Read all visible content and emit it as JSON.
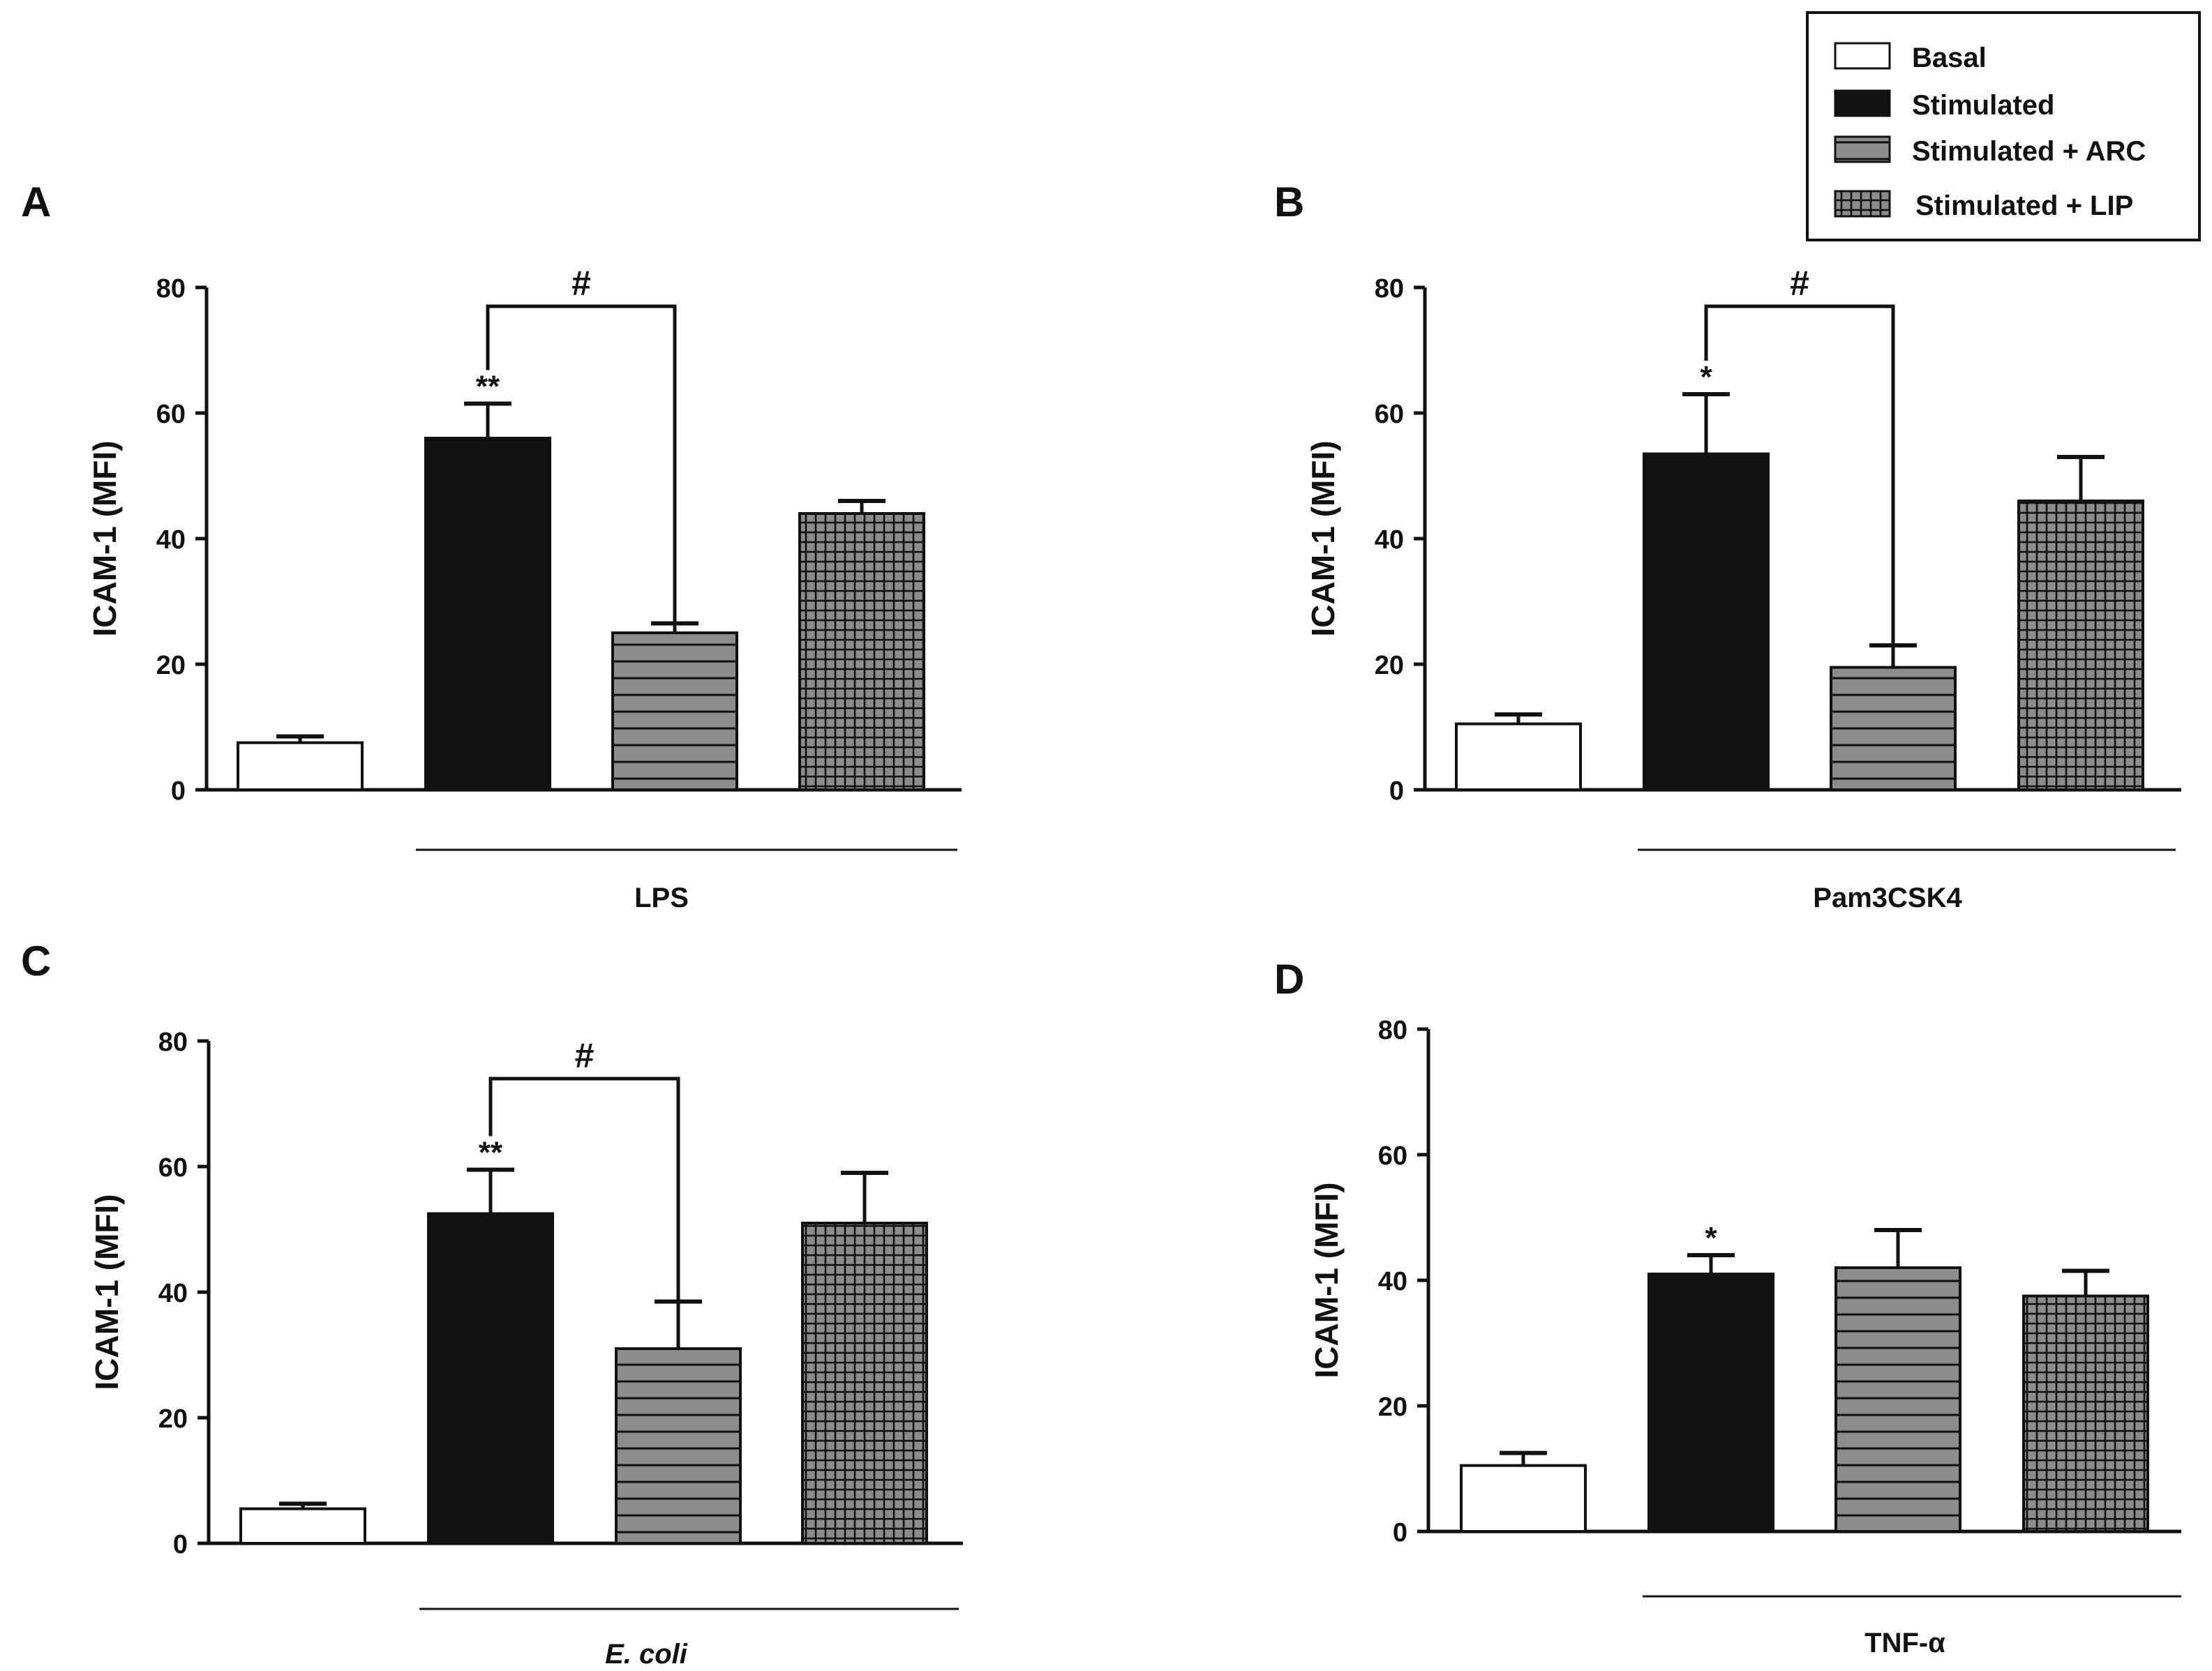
{
  "legend": {
    "items": [
      {
        "label": "Basal",
        "style": "white"
      },
      {
        "label": "Stimulated",
        "style": "black"
      },
      {
        "label": "Stimulated + ARC",
        "style": "hstripe"
      },
      {
        "label": "Stimulated + LIP",
        "style": "grid"
      }
    ]
  },
  "colors": {
    "stroke": "#111111",
    "bar_fill_black": "#111111",
    "pattern_bg": "#8c8c8c",
    "pattern_line": "#111111",
    "white": "#ffffff"
  },
  "chart_data": [
    {
      "type": "bar",
      "panel": "A",
      "ylabel": "ICAM-1  (MFI)",
      "ylim": [
        0,
        80
      ],
      "yticks": [
        0,
        20,
        40,
        60,
        80
      ],
      "categories": [
        "Basal",
        "Stimulated",
        "Stimulated + ARC",
        "Stimulated + LIP"
      ],
      "values": [
        7.5,
        56,
        25,
        44
      ],
      "errors": [
        1,
        5.5,
        1.5,
        2
      ],
      "stars": [
        "",
        "**",
        "",
        ""
      ],
      "bracket": {
        "from": 1,
        "to": 2,
        "label": "#",
        "y": 77
      },
      "group_label": "LPS",
      "group_italic": false
    },
    {
      "type": "bar",
      "panel": "B",
      "ylabel": "ICAM-1  (MFI)",
      "ylim": [
        0,
        80
      ],
      "yticks": [
        0,
        20,
        40,
        60,
        80
      ],
      "categories": [
        "Basal",
        "Stimulated",
        "Stimulated + ARC",
        "Stimulated + LIP"
      ],
      "values": [
        10.5,
        53.5,
        19.5,
        46
      ],
      "errors": [
        1.5,
        9.5,
        3.5,
        7
      ],
      "stars": [
        "",
        "*",
        "",
        ""
      ],
      "bracket": {
        "from": 1,
        "to": 2,
        "label": "#",
        "y": 77
      },
      "group_label": "Pam3CSK4",
      "group_italic": false
    },
    {
      "type": "bar",
      "panel": "C",
      "ylabel": "ICAM-1  (MFI)",
      "ylim": [
        0,
        80
      ],
      "yticks": [
        0,
        20,
        40,
        60,
        80
      ],
      "categories": [
        "Basal",
        "Stimulated",
        "Stimulated + ARC",
        "Stimulated + LIP"
      ],
      "values": [
        5.5,
        52.5,
        31,
        51
      ],
      "errors": [
        0.8,
        7,
        7.5,
        8
      ],
      "stars": [
        "",
        "**",
        "",
        ""
      ],
      "bracket": {
        "from": 1,
        "to": 2,
        "label": "#",
        "y": 74
      },
      "group_label": "E. coli",
      "group_italic": true
    },
    {
      "type": "bar",
      "panel": "D",
      "ylabel": "ICAM-1  (MFI)",
      "ylim": [
        0,
        80
      ],
      "yticks": [
        0,
        20,
        40,
        60,
        80
      ],
      "categories": [
        "Basal",
        "Stimulated",
        "Stimulated + ARC",
        "Stimulated + LIP"
      ],
      "values": [
        10.5,
        41,
        42,
        37.5
      ],
      "errors": [
        2,
        3,
        6,
        4
      ],
      "stars": [
        "",
        "*",
        "",
        ""
      ],
      "bracket": null,
      "group_label": "TNF-α",
      "group_italic": false
    }
  ]
}
